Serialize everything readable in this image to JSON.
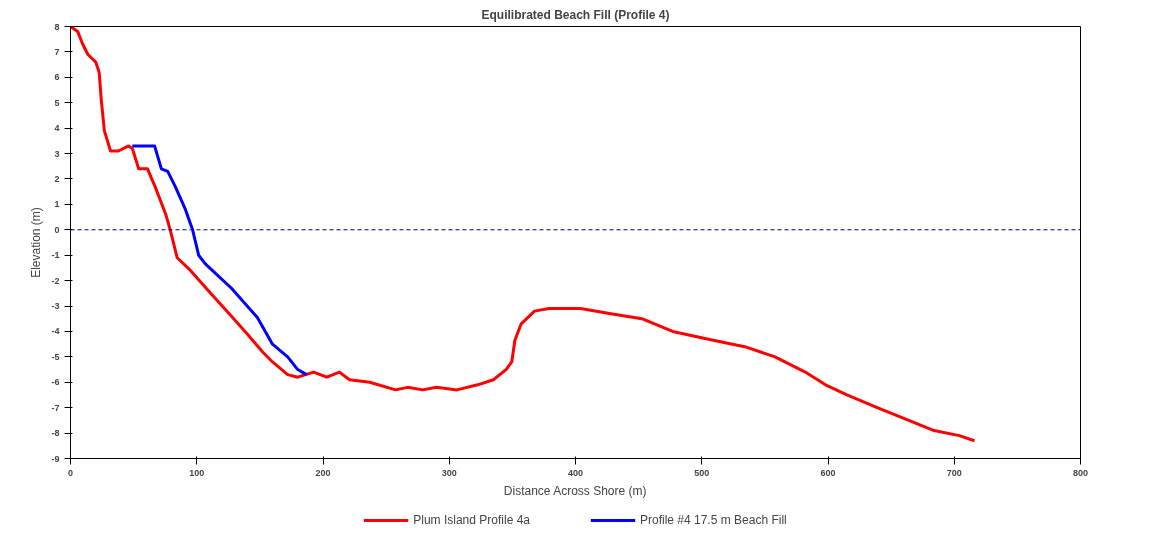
{
  "chart_data": {
    "type": "line",
    "title": "Equilibrated Beach Fill (Profile 4)",
    "xlabel": "Distance Across Shore (m)",
    "ylabel": "Elevation (m)",
    "xlim": [
      0,
      800
    ],
    "xticks": [
      0,
      100,
      200,
      300,
      400,
      500,
      600,
      700,
      800
    ],
    "ylim": [
      -9,
      8
    ],
    "yticks": [
      -9,
      -8,
      -7,
      -6,
      -5,
      -4,
      -3,
      -2,
      -1,
      0,
      1,
      2,
      3,
      4,
      5,
      6,
      7,
      8
    ],
    "grid": false,
    "legend": "bottom",
    "marker": "none",
    "line_style": "solid",
    "ref_lines": [
      {
        "axis": "y",
        "value": 0,
        "label": null,
        "color": "#000080",
        "line_style": "dashed"
      }
    ],
    "series": [
      {
        "name": "Plum Island Profile 4a",
        "color": "#ff0000",
        "x": [
          0,
          5.7,
          9.7,
          13.8,
          20,
          22.7,
          24.4,
          26.8,
          31.7,
          38,
          46,
          49,
          54,
          61,
          67,
          75.5,
          79,
          84.5,
          95,
          111,
          127.5,
          140,
          152,
          160,
          172,
          180,
          192.5,
          203,
          213,
          221,
          237,
          257.5,
          267,
          279,
          290,
          306,
          322.5,
          335,
          345,
          349.5,
          352,
          357,
          367.5,
          379,
          404,
          428,
          452.5,
          477,
          509,
          534,
          558,
          582,
          598,
          615,
          639,
          664,
          684,
          704,
          716
        ],
        "values": [
          8,
          7.8,
          7.3,
          6.9,
          6.6,
          6.2,
          5.1,
          3.9,
          3.1,
          3.1,
          3.3,
          3.2,
          2.4,
          2.4,
          1.7,
          0.6,
          0,
          -1.1,
          -1.6,
          -2.5,
          -3.4,
          -4.1,
          -4.8,
          -5.2,
          -5.7,
          -5.8,
          -5.6,
          -5.8,
          -5.6,
          -5.9,
          -6,
          -6.3,
          -6.2,
          -6.3,
          -6.2,
          -6.3,
          -6.1,
          -5.9,
          -5.5,
          -5.2,
          -4.35,
          -3.7,
          -3.2,
          -3.1,
          -3.1,
          -3.3,
          -3.5,
          -4,
          -4.35,
          -4.6,
          -5,
          -5.6,
          -6.1,
          -6.5,
          -7,
          -7.5,
          -7.9,
          -8.1,
          -8.3
        ]
      },
      {
        "name": "Profile #4 17.5 m Beach Fill",
        "color": "#0000ff",
        "x": [
          49,
          66.6,
          72,
          77,
          83,
          91,
          96.7,
          101.5,
          107,
          127.5,
          148,
          160,
          172,
          180,
          187
        ],
        "values": [
          3.3,
          3.3,
          2.4,
          2.3,
          1.7,
          0.8,
          0,
          -1,
          -1.35,
          -2.3,
          -3.45,
          -4.5,
          -5,
          -5.5,
          -5.7
        ]
      }
    ]
  }
}
